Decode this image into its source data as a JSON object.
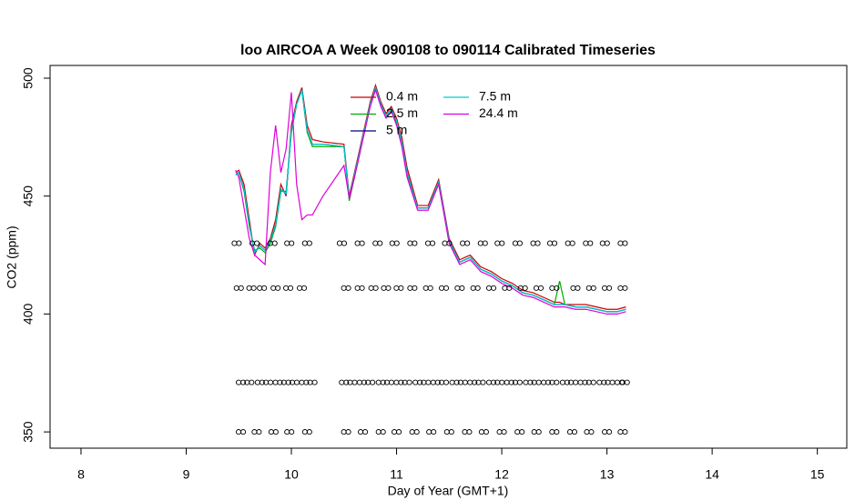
{
  "chart_data": {
    "type": "line",
    "title": "loo AIRCOA A  Week 090108 to 090114  Calibrated Timeseries",
    "xlabel": "Day of Year (GMT+1)",
    "ylabel": "CO2 (ppm)",
    "xlim": [
      7.706,
      15.28
    ],
    "ylim": [
      343.1,
      505.4
    ],
    "xticks": [
      8,
      9,
      10,
      11,
      12,
      13,
      14,
      15
    ],
    "yticks": [
      350,
      400,
      450,
      500
    ],
    "legend": "top",
    "x": [
      9.47,
      9.5,
      9.55,
      9.6,
      9.65,
      9.7,
      9.75,
      9.8,
      9.85,
      9.9,
      9.95,
      10.0,
      10.05,
      10.1,
      10.15,
      10.2,
      10.3,
      10.5,
      10.55,
      10.6,
      10.65,
      10.7,
      10.75,
      10.8,
      10.85,
      10.9,
      10.95,
      11.0,
      11.05,
      11.1,
      11.2,
      11.3,
      11.4,
      11.5,
      11.6,
      11.7,
      11.8,
      11.9,
      12.0,
      12.1,
      12.2,
      12.3,
      12.4,
      12.5,
      12.55,
      12.6,
      12.7,
      12.8,
      12.9,
      13.0,
      13.1,
      13.18
    ],
    "series": [
      {
        "name": "0.4 m",
        "color": "#cc0000",
        "values": [
          460,
          461,
          455,
          440,
          425,
          430,
          428,
          432,
          440,
          455,
          450,
          480,
          490,
          496,
          480,
          474,
          473,
          472,
          450,
          460,
          470,
          480,
          490,
          497,
          490,
          485,
          488,
          483,
          475,
          462,
          446,
          446,
          457,
          432,
          423,
          425,
          420,
          418,
          415,
          413,
          410,
          409,
          407,
          405,
          405,
          404,
          404,
          404,
          403,
          402,
          402,
          403
        ]
      },
      {
        "name": "2.5 m",
        "color": "#00aa00",
        "values": [
          459,
          460,
          452,
          437,
          427,
          428,
          426,
          430,
          437,
          452,
          452,
          477,
          489,
          495,
          477,
          471,
          471,
          471,
          448,
          458,
          468,
          479,
          489,
          496,
          489,
          484,
          487,
          481,
          472,
          459,
          445,
          445,
          456,
          430,
          422,
          424,
          419,
          417,
          414,
          412,
          409,
          408,
          406,
          404,
          414,
          404,
          403,
          403,
          402,
          401,
          401,
          402
        ]
      },
      {
        "name": "5 m",
        "color": "#000080",
        "values": [
          459,
          460,
          453,
          438,
          426,
          429,
          427,
          431,
          438,
          453,
          451,
          478,
          489,
          495,
          478,
          472,
          472,
          471,
          449,
          459,
          469,
          479,
          489,
          496,
          489,
          484,
          487,
          482,
          473,
          460,
          445,
          445,
          456,
          431,
          422,
          424,
          419,
          417,
          414,
          412,
          409,
          408,
          406,
          404,
          404,
          404,
          403,
          403,
          402,
          401,
          401,
          402
        ]
      },
      {
        "name": "7.5 m",
        "color": "#00cccc",
        "values": [
          459,
          460,
          453,
          438,
          426,
          429,
          427,
          431,
          438,
          453,
          451,
          478,
          489,
          495,
          478,
          472,
          472,
          471,
          449,
          459,
          469,
          479,
          489,
          496,
          489,
          484,
          487,
          482,
          473,
          460,
          445,
          445,
          456,
          431,
          422,
          424,
          419,
          417,
          414,
          412,
          409,
          408,
          406,
          404,
          404,
          404,
          403,
          403,
          402,
          401,
          401,
          402
        ]
      },
      {
        "name": "24.4 m",
        "color": "#dd00dd",
        "values": [
          461,
          458,
          445,
          432,
          425,
          423,
          421,
          460,
          480,
          460,
          470,
          494,
          455,
          440,
          442,
          442,
          450,
          463,
          449,
          458,
          468,
          478,
          488,
          495,
          488,
          483,
          486,
          480,
          471,
          458,
          444,
          444,
          455,
          430,
          421,
          423,
          418,
          416,
          413,
          411,
          408,
          407,
          405,
          403,
          403,
          403,
          402,
          402,
          401,
          400,
          400,
          401
        ]
      }
    ],
    "points": [
      {
        "y": 430,
        "x": [
          9.48,
          9.65,
          9.82,
          9.98,
          10.15,
          10.48,
          10.65,
          10.82,
          10.98,
          11.15,
          11.32,
          11.48,
          11.65,
          11.82,
          11.98,
          12.15,
          12.32,
          12.48,
          12.65,
          12.82,
          12.98,
          13.15
        ]
      },
      {
        "y": 411,
        "x": [
          9.5,
          9.62,
          9.72,
          9.85,
          9.97,
          10.1,
          10.52,
          10.65,
          10.78,
          10.9,
          11.02,
          11.15,
          11.3,
          11.45,
          11.6,
          11.75,
          11.9,
          12.05,
          12.2,
          12.35,
          12.5,
          12.7,
          12.85,
          13.0,
          13.15
        ]
      },
      {
        "y": 371,
        "x": [
          9.52,
          9.6,
          9.7,
          9.78,
          9.87,
          9.95,
          10.03,
          10.12,
          10.2,
          10.5,
          10.58,
          10.67,
          10.75,
          10.85,
          10.93,
          11.02,
          11.1,
          11.2,
          11.28,
          11.37,
          11.45,
          11.55,
          11.63,
          11.72,
          11.8,
          11.9,
          11.98,
          12.07,
          12.15,
          12.25,
          12.33,
          12.42,
          12.5,
          12.6,
          12.68,
          12.77,
          12.85,
          12.95,
          13.03,
          13.12,
          13.17
        ]
      },
      {
        "y": 350,
        "x": [
          9.52,
          9.67,
          9.83,
          9.98,
          10.15,
          10.52,
          10.68,
          10.85,
          11.0,
          11.17,
          11.33,
          11.5,
          11.67,
          11.83,
          12.0,
          12.17,
          12.33,
          12.5,
          12.67,
          12.83,
          13.0,
          13.15
        ]
      }
    ]
  }
}
